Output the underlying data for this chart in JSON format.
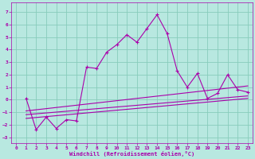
{
  "xlabel": "Windchill (Refroidissement éolien,°C)",
  "background_color": "#b8e8e0",
  "grid_color": "#88ccbb",
  "line_color": "#aa00aa",
  "xlim": [
    -0.5,
    23.5
  ],
  "ylim": [
    -3.5,
    7.8
  ],
  "yticks": [
    -3,
    -2,
    -1,
    0,
    1,
    2,
    3,
    4,
    5,
    6,
    7
  ],
  "xticks": [
    0,
    1,
    2,
    3,
    4,
    5,
    6,
    7,
    8,
    9,
    10,
    11,
    12,
    13,
    14,
    15,
    16,
    17,
    18,
    19,
    20,
    21,
    22,
    23
  ],
  "main_x": [
    1,
    2,
    3,
    4,
    5,
    6,
    7,
    8,
    9,
    10,
    11,
    12,
    13,
    14,
    15,
    16,
    17,
    18,
    19,
    20,
    21,
    22,
    23
  ],
  "main_y": [
    0.1,
    -2.4,
    -1.4,
    -2.3,
    -1.6,
    -1.7,
    2.6,
    2.5,
    3.8,
    4.4,
    5.2,
    4.6,
    5.7,
    6.8,
    5.3,
    2.3,
    1.0,
    2.1,
    0.1,
    0.5,
    2.0,
    0.8,
    0.6
  ],
  "trend_lines": [
    {
      "x": [
        1,
        23
      ],
      "y": [
        -0.9,
        1.1
      ]
    },
    {
      "x": [
        1,
        23
      ],
      "y": [
        -1.2,
        0.3
      ]
    },
    {
      "x": [
        1,
        23
      ],
      "y": [
        -1.5,
        0.1
      ]
    }
  ]
}
